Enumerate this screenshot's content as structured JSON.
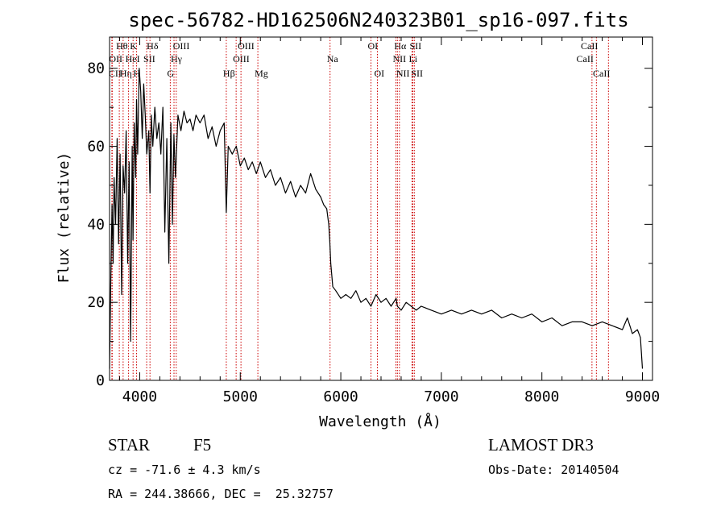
{
  "chart_data": {
    "type": "line",
    "title": "spec-56782-HD162506N240323B01_sp16-097.fits",
    "xlabel": "Wavelength (Å)",
    "ylabel": "Flux (relative)",
    "xlim": [
      3700,
      9100
    ],
    "ylim": [
      0,
      88
    ],
    "xticks": [
      4000,
      5000,
      6000,
      7000,
      8000,
      9000
    ],
    "yticks": [
      0,
      20,
      40,
      60,
      80
    ],
    "grid": false,
    "series": [
      {
        "x": [
          3700,
          3712,
          3725,
          3735,
          3745,
          3760,
          3775,
          3790,
          3805,
          3820,
          3835,
          3850,
          3865,
          3880,
          3895,
          3910,
          3925,
          3933,
          3945,
          3960,
          3968,
          3980,
          3995,
          4010,
          4025,
          4040,
          4055,
          4070,
          4090,
          4102,
          4115,
          4130,
          4150,
          4170,
          4190,
          4210,
          4230,
          4250,
          4270,
          4290,
          4310,
          4325,
          4340,
          4355,
          4380,
          4410,
          4440,
          4470,
          4500,
          4530,
          4560,
          4600,
          4640,
          4680,
          4720,
          4760,
          4800,
          4840,
          4861,
          4880,
          4920,
          4960,
          5000,
          5040,
          5080,
          5120,
          5160,
          5200,
          5250,
          5300,
          5350,
          5400,
          5450,
          5500,
          5550,
          5600,
          5650,
          5700,
          5750,
          5800,
          5830,
          5860,
          5880,
          5890,
          5900,
          5920,
          5950,
          6000,
          6050,
          6100,
          6150,
          6200,
          6250,
          6300,
          6350,
          6400,
          6450,
          6500,
          6550,
          6563,
          6600,
          6650,
          6700,
          6750,
          6800,
          6900,
          7000,
          7100,
          7200,
          7300,
          7400,
          7500,
          7600,
          7700,
          7800,
          7900,
          8000,
          8100,
          8200,
          8300,
          8400,
          8500,
          8600,
          8700,
          8800,
          8850,
          8900,
          8950,
          8980,
          9000
        ],
        "y": [
          3,
          25,
          45,
          30,
          52,
          40,
          62,
          35,
          58,
          22,
          55,
          48,
          64,
          30,
          56,
          10,
          60,
          36,
          66,
          52,
          72,
          58,
          80,
          74,
          62,
          76,
          68,
          58,
          64,
          48,
          68,
          60,
          70,
          62,
          66,
          58,
          70,
          38,
          62,
          30,
          66,
          40,
          63,
          52,
          68,
          64,
          69,
          66,
          67,
          64,
          68,
          66,
          68,
          62,
          65,
          60,
          64,
          66,
          43,
          60,
          58,
          60,
          55,
          57,
          54,
          56,
          53,
          56,
          52,
          54,
          50,
          52,
          48,
          51,
          47,
          50,
          48,
          53,
          49,
          47,
          45,
          44,
          40,
          36,
          30,
          24,
          23,
          21,
          22,
          21,
          23,
          20,
          21,
          19,
          22,
          20,
          21,
          19,
          21,
          19,
          18,
          20,
          19,
          18,
          19,
          18,
          17,
          18,
          17,
          18,
          17,
          18,
          16,
          17,
          16,
          17,
          15,
          16,
          14,
          15,
          15,
          14,
          15,
          14,
          13,
          16,
          12,
          13,
          11,
          3
        ]
      }
    ],
    "line_markers": [
      {
        "label": "CII",
        "x": 3723,
        "row": 2,
        "side": "right"
      },
      {
        "label": "OII",
        "x": 3727,
        "row": 1,
        "side": "right"
      },
      {
        "label": "Hθ",
        "x": 3797,
        "row": 0,
        "side": "right"
      },
      {
        "label": "Hη",
        "x": 3835,
        "row": 2,
        "side": "right"
      },
      {
        "label": "HeI",
        "x": 3889,
        "row": 1,
        "side": "right"
      },
      {
        "label": "K",
        "x": 3934,
        "row": 0,
        "side": "right"
      },
      {
        "label": "H",
        "x": 3968,
        "row": 2,
        "side": "right"
      },
      {
        "label": "SII",
        "x": 4069,
        "row": 1,
        "side": "right"
      },
      {
        "label": "Hδ",
        "x": 4102,
        "row": 0,
        "side": "right"
      },
      {
        "label": "G",
        "x": 4304,
        "row": 2,
        "side": "right"
      },
      {
        "label": "Hγ",
        "x": 4341,
        "row": 1,
        "side": "right"
      },
      {
        "label": "OIII",
        "x": 4363,
        "row": 0,
        "side": "right"
      },
      {
        "label": "Hβ",
        "x": 4861,
        "row": 2,
        "side": "right"
      },
      {
        "label": "OIII",
        "x": 4959,
        "row": 1,
        "side": "right"
      },
      {
        "label": "OIII",
        "x": 5007,
        "row": 0,
        "side": "right"
      },
      {
        "label": "Mg",
        "x": 5175,
        "row": 2,
        "side": "right"
      },
      {
        "label": "Na",
        "x": 5893,
        "row": 1,
        "side": "right"
      },
      {
        "label": "OI",
        "x": 6300,
        "row": 0,
        "side": "right"
      },
      {
        "label": "OI",
        "x": 6364,
        "row": 2,
        "side": "right"
      },
      {
        "label": "NII",
        "x": 6548,
        "row": 1,
        "side": "right"
      },
      {
        "label": "Hα",
        "x": 6563,
        "row": 0,
        "side": "right"
      },
      {
        "label": "NII",
        "x": 6583,
        "row": 2,
        "side": "right"
      },
      {
        "label": "Li",
        "x": 6708,
        "row": 1,
        "side": "right"
      },
      {
        "label": "SII",
        "x": 6716,
        "row": 0,
        "side": "right"
      },
      {
        "label": "SII",
        "x": 6731,
        "row": 2,
        "side": "right"
      },
      {
        "label": "CaII",
        "x": 8498,
        "row": 1,
        "side": "left"
      },
      {
        "label": "CaII",
        "x": 8542,
        "row": 0,
        "side": "left"
      },
      {
        "label": "CaII",
        "x": 8662,
        "row": 2,
        "side": "left"
      }
    ],
    "marker_color": "#cc0000",
    "line_color": "#000000"
  },
  "info": {
    "object_class": "STAR",
    "subclass": "F5",
    "survey": "LAMOST DR3",
    "redshift": "cz = -71.6 ± 4.3 km/s",
    "obs_date": "Obs-Date: 20140504",
    "coords": "RA = 244.38666, DEC =  25.32757"
  }
}
